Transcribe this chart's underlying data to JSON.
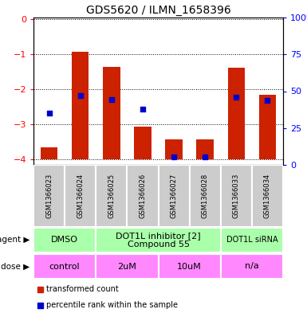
{
  "title": "GDS5620 / ILMN_1658396",
  "samples": [
    "GSM1366023",
    "GSM1366024",
    "GSM1366025",
    "GSM1366026",
    "GSM1366027",
    "GSM1366028",
    "GSM1366033",
    "GSM1366034"
  ],
  "red_bar_tops": [
    -3.65,
    -0.92,
    -1.35,
    -3.05,
    -3.42,
    -3.42,
    -1.38,
    -2.15
  ],
  "blue_dot_y": [
    -2.68,
    -2.18,
    -2.28,
    -2.55,
    -3.92,
    -3.92,
    -2.22,
    -2.32
  ],
  "bar_bottom": -4.0,
  "ylim_left": [
    -4.15,
    0.05
  ],
  "ylim_right": [
    0,
    100
  ],
  "yticks_left": [
    0,
    -1,
    -2,
    -3,
    -4
  ],
  "yticks_right": [
    0,
    25,
    50,
    75,
    100
  ],
  "agent_groups": [
    {
      "label": "DMSO",
      "start": 0,
      "end": 2,
      "color": "#aaffaa",
      "fontsize": 8
    },
    {
      "label": "DOT1L inhibitor [2]\nCompound 55",
      "start": 2,
      "end": 6,
      "color": "#aaffaa",
      "fontsize": 8
    },
    {
      "label": "DOT1L siRNA",
      "start": 6,
      "end": 8,
      "color": "#aaffaa",
      "fontsize": 7
    }
  ],
  "dose_groups": [
    {
      "label": "control",
      "start": 0,
      "end": 2,
      "color": "#ff88ff"
    },
    {
      "label": "2uM",
      "start": 2,
      "end": 4,
      "color": "#ff88ff"
    },
    {
      "label": "10uM",
      "start": 4,
      "end": 6,
      "color": "#ff88ff"
    },
    {
      "label": "n/a",
      "start": 6,
      "end": 8,
      "color": "#ff88ff"
    }
  ],
  "bar_color": "#cc2200",
  "dot_color": "#0000cc",
  "left_axis_color": "red",
  "right_axis_color": "blue",
  "bg_color": "white",
  "sample_bg_color": "#cccccc",
  "fig_width": 3.85,
  "fig_height": 3.93,
  "dpi": 100
}
